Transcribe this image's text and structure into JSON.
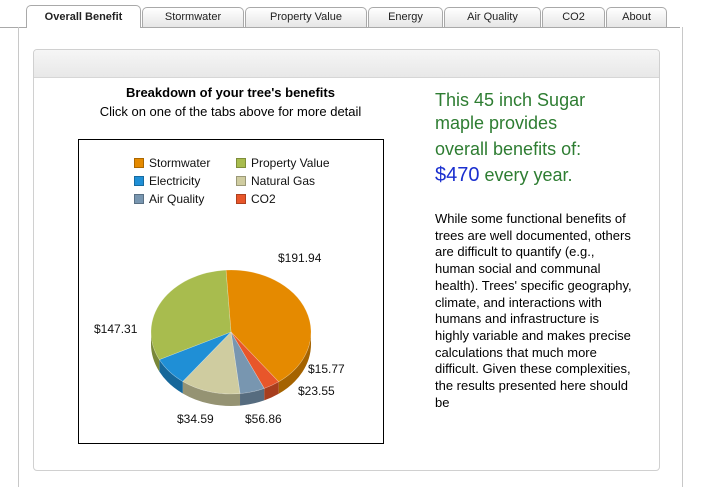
{
  "tabs": [
    {
      "label": "Overall Benefit",
      "active": true
    },
    {
      "label": "Stormwater",
      "active": false
    },
    {
      "label": "Property Value",
      "active": false
    },
    {
      "label": "Energy",
      "active": false
    },
    {
      "label": "Air Quality",
      "active": false
    },
    {
      "label": "CO2",
      "active": false
    },
    {
      "label": "About",
      "active": false
    }
  ],
  "breakdown": {
    "title": "Breakdown of your tree's benefits",
    "subtitle": "Click on one of the tabs above for more detail"
  },
  "summary": {
    "line1": "This 45 inch Sugar",
    "line2": "maple provides",
    "line3": "overall benefits of:",
    "amount": "$470",
    "suffix": " every year."
  },
  "paragraph": "While some functional benefits of trees are well documented, others are difficult to quantify (e.g., human social and communal health). Trees' specific geography, climate, and interactions with humans and infrastructure is highly variable and makes precise calculations that much more difficult. Given these complexities, the results presented here should be",
  "chart_data": {
    "type": "pie",
    "series": [
      {
        "name": "Stormwater",
        "value": 191.94,
        "label": "$191.94",
        "color": "#e58a00"
      },
      {
        "name": "CO2",
        "value": 15.77,
        "label": "$15.77",
        "color": "#e8562a"
      },
      {
        "name": "Air Quality",
        "value": 23.55,
        "label": "$23.55",
        "color": "#7896b0"
      },
      {
        "name": "Natural Gas",
        "value": 56.86,
        "label": "$56.86",
        "color": "#cfcca0"
      },
      {
        "name": "Electricity",
        "value": 34.59,
        "label": "$34.59",
        "color": "#1f8fd6"
      },
      {
        "name": "Property Value",
        "value": 147.31,
        "label": "$147.31",
        "color": "#a8bc4e"
      }
    ],
    "legend": [
      {
        "name": "Stormwater",
        "color": "#e58a00"
      },
      {
        "name": "Property Value",
        "color": "#a8bc4e"
      },
      {
        "name": "Electricity",
        "color": "#1f8fd6"
      },
      {
        "name": "Natural Gas",
        "color": "#cfcca0"
      },
      {
        "name": "Air Quality",
        "color": "#7896b0"
      },
      {
        "name": "CO2",
        "color": "#e8562a"
      }
    ],
    "legend_position": "top"
  }
}
